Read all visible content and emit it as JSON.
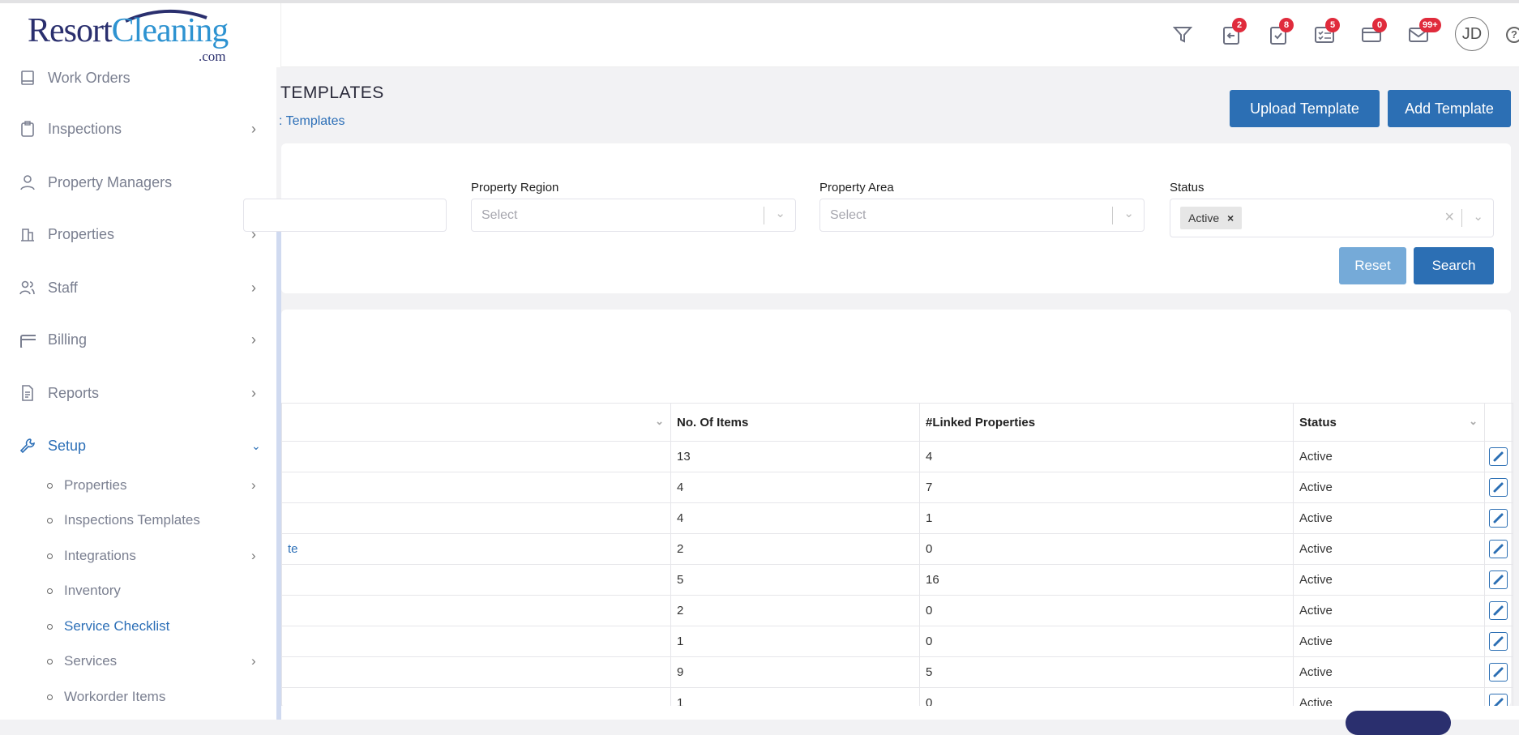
{
  "brand": {
    "logo_text_1": "Resort",
    "logo_text_2": "Cleaning",
    "logo_text_3": ".com"
  },
  "header": {
    "icons": [
      {
        "name": "filter-icon",
        "badge": null
      },
      {
        "name": "clipboard-arrow-icon",
        "badge": "2"
      },
      {
        "name": "clipboard-check-icon",
        "badge": "8"
      },
      {
        "name": "checklist-icon",
        "badge": "5"
      },
      {
        "name": "credit-card-icon",
        "badge": "0"
      },
      {
        "name": "mail-icon",
        "badge": "99+"
      }
    ],
    "avatar": "JD",
    "help": "?"
  },
  "sidebar": {
    "items": [
      {
        "label": "Work Orders",
        "icon": "book-icon"
      },
      {
        "label": "Inspections",
        "icon": "clipboard-icon"
      },
      {
        "label": "Property Managers",
        "icon": "user-icon"
      },
      {
        "label": "Properties",
        "icon": "building-icon"
      },
      {
        "label": "Staff",
        "icon": "users-icon"
      },
      {
        "label": "Billing",
        "icon": "credit-card-icon"
      },
      {
        "label": "Reports",
        "icon": "document-icon"
      },
      {
        "label": "Setup",
        "icon": "wrench-icon"
      }
    ],
    "setup_children": [
      {
        "label": "Properties",
        "chevron": true
      },
      {
        "label": "Inspections Templates",
        "chevron": false
      },
      {
        "label": "Integrations",
        "chevron": true
      },
      {
        "label": "Inventory",
        "chevron": false
      },
      {
        "label": "Service Checklist",
        "chevron": false,
        "active": true
      },
      {
        "label": "Services",
        "chevron": true
      },
      {
        "label": "Workorder Items",
        "chevron": false
      }
    ]
  },
  "page": {
    "title": "TEMPLATES",
    "breadcrumb": ": Templates",
    "upload_button": "Upload Template",
    "add_button": "Add Template"
  },
  "filters": {
    "region_label": "Property Region",
    "region_placeholder": "Select",
    "area_label": "Property Area",
    "area_placeholder": "Select",
    "status_label": "Status",
    "status_value": "Active",
    "reset": "Reset",
    "search": "Search"
  },
  "table": {
    "columns": [
      "",
      "No. Of Items",
      "#Linked Properties",
      "Status",
      ""
    ],
    "rows": [
      {
        "name": "",
        "items": "13",
        "linked": "4",
        "status": "Active"
      },
      {
        "name": "",
        "items": "4",
        "linked": "7",
        "status": "Active"
      },
      {
        "name": "",
        "items": "4",
        "linked": "1",
        "status": "Active"
      },
      {
        "name": "te",
        "items": "2",
        "linked": "0",
        "status": "Active"
      },
      {
        "name": "",
        "items": "5",
        "linked": "16",
        "status": "Active"
      },
      {
        "name": "",
        "items": "2",
        "linked": "0",
        "status": "Active"
      },
      {
        "name": "",
        "items": "1",
        "linked": "0",
        "status": "Active"
      },
      {
        "name": "",
        "items": "9",
        "linked": "5",
        "status": "Active"
      },
      {
        "name": "",
        "items": "1",
        "linked": "0",
        "status": "Active"
      }
    ]
  },
  "colors": {
    "primary": "#2c6fb4",
    "reset": "#75aad8",
    "badge": "#e02b3c",
    "brand_dark": "#2a2f6e",
    "brand_light": "#2e93d1"
  }
}
